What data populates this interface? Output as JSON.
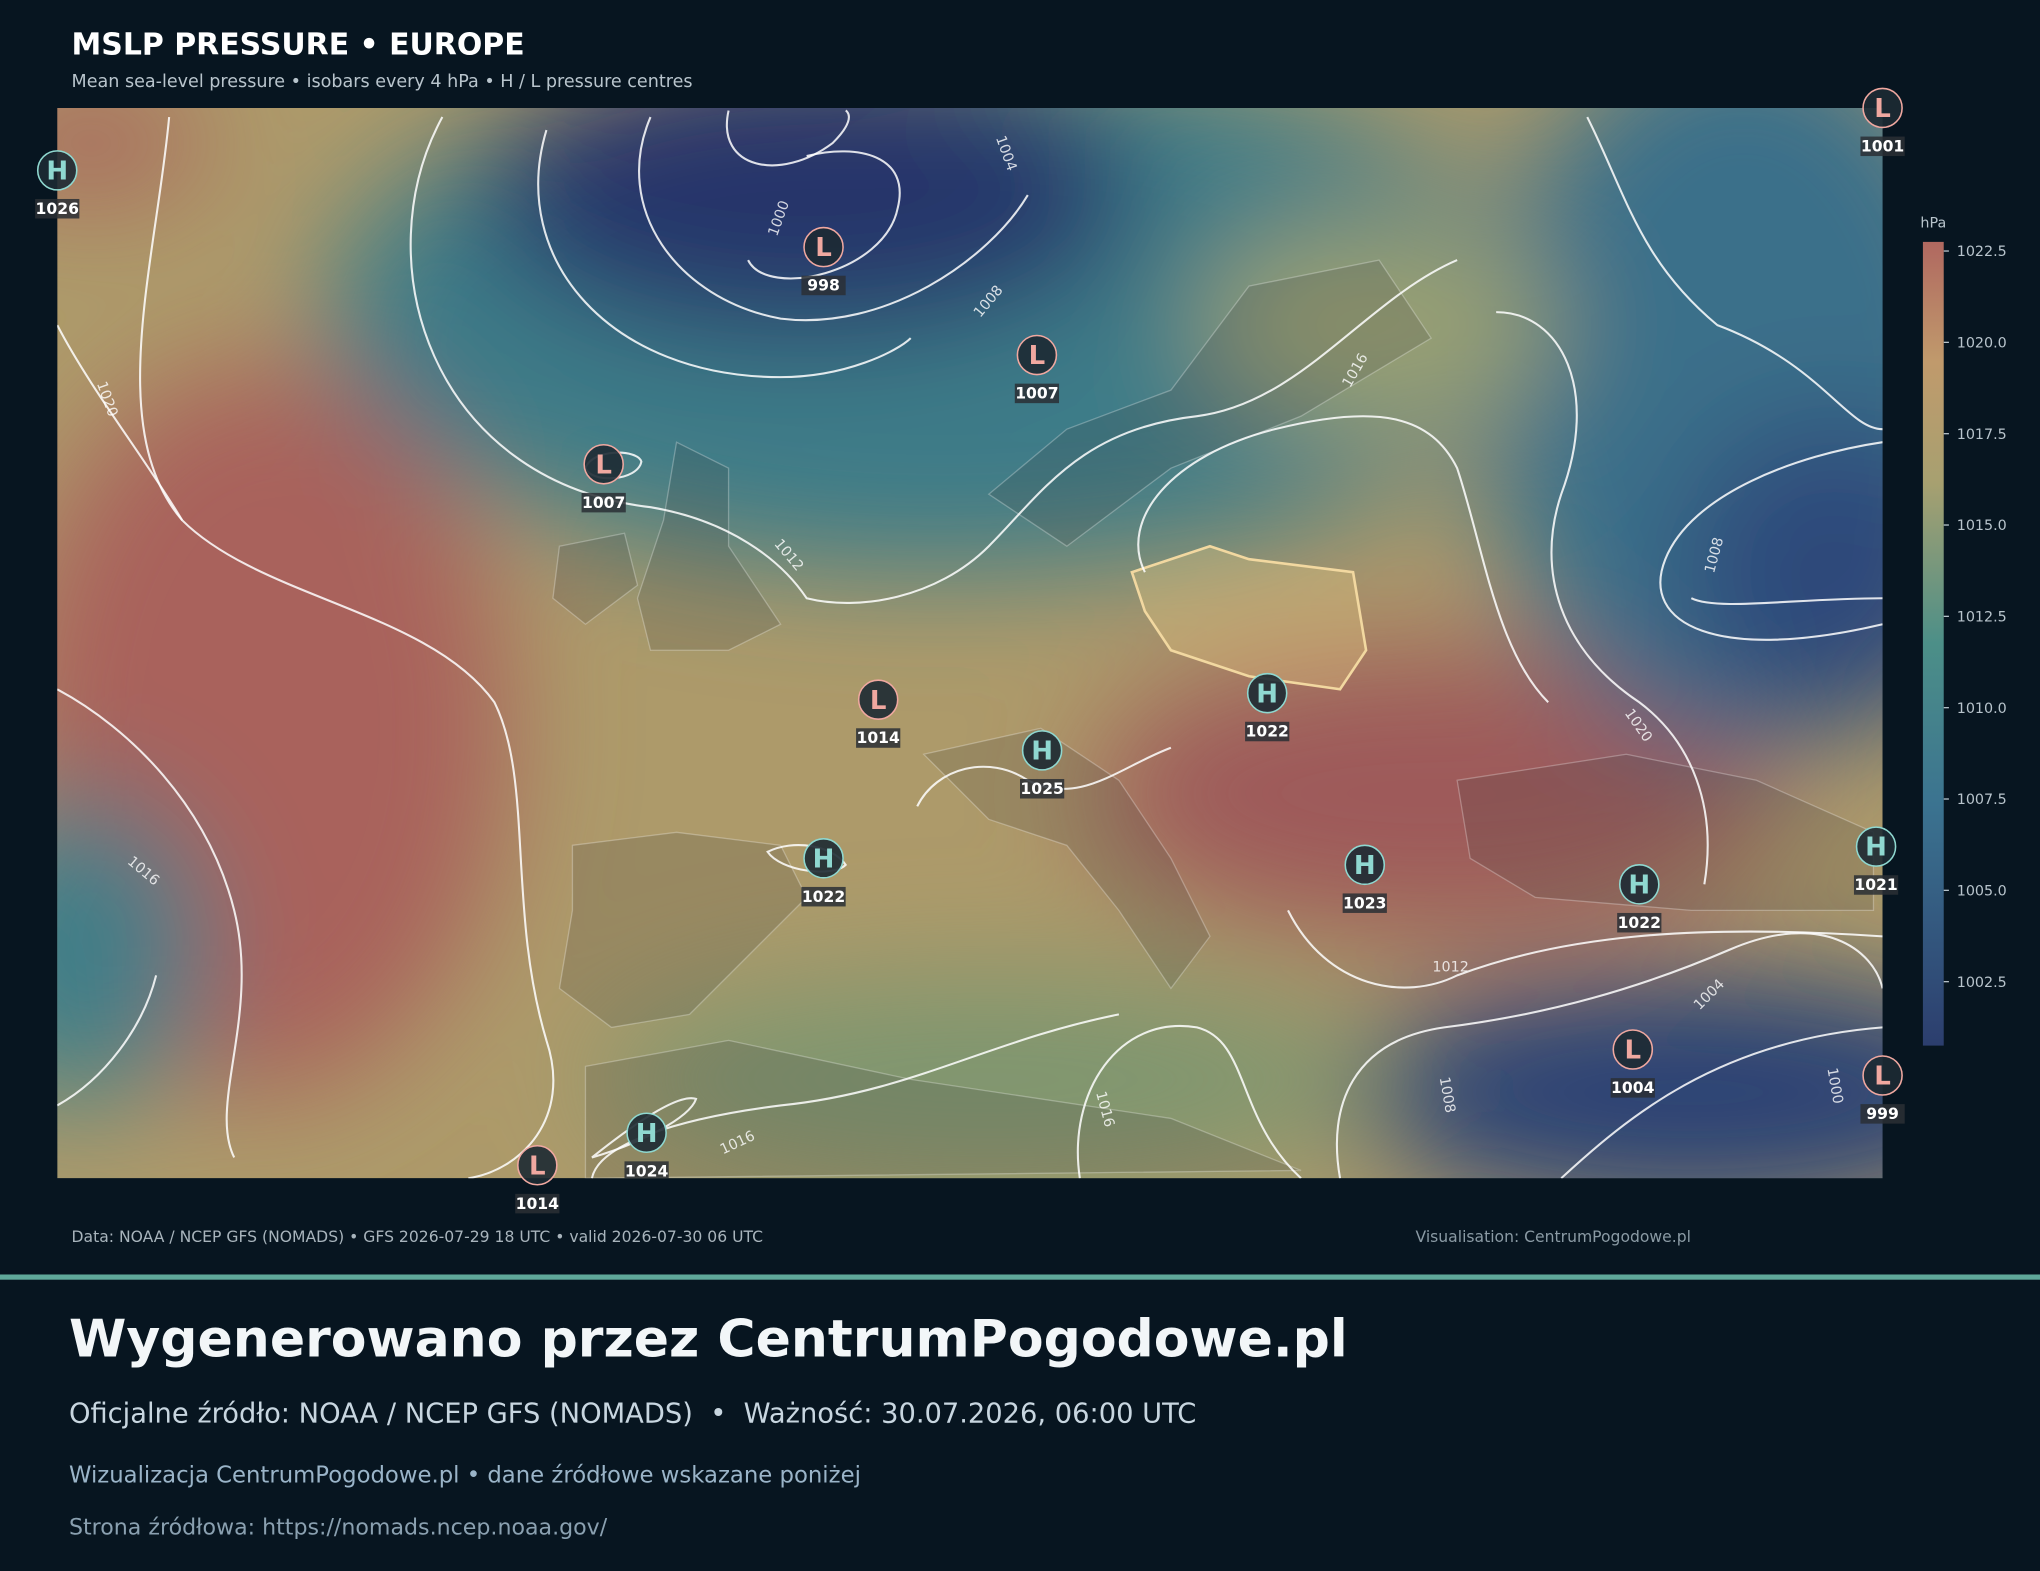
{
  "header": {
    "title": "MSLP PRESSURE • EUROPE",
    "subtitle": "Mean sea-level pressure • isobars every 4 hPa • H / L pressure centres"
  },
  "chart_data": {
    "type": "map",
    "centres": [
      {
        "type": "H",
        "value": 1026
      },
      {
        "type": "L",
        "value": 998
      },
      {
        "type": "L",
        "value": 1001
      },
      {
        "type": "L",
        "value": 1007
      },
      {
        "type": "L",
        "value": 1007
      },
      {
        "type": "L",
        "value": 1014
      },
      {
        "type": "H",
        "value": 1025
      },
      {
        "type": "H",
        "value": 1022
      },
      {
        "type": "H",
        "value": 1022
      },
      {
        "type": "H",
        "value": 1023
      },
      {
        "type": "H",
        "value": 1022
      },
      {
        "type": "H",
        "value": 1021
      },
      {
        "type": "L",
        "value": 1004
      },
      {
        "type": "L",
        "value": 999
      },
      {
        "type": "H",
        "value": 1024
      },
      {
        "type": "L",
        "value": 1014
      }
    ],
    "isobar_labels": [
      1004,
      1000,
      1008,
      1016,
      1020,
      1012,
      1008,
      1020,
      1016,
      1012,
      1004,
      1008,
      1016,
      1000,
      1016
    ],
    "colorbar": {
      "label": "hPa",
      "ylim": [
        1000.75,
        1022.75
      ],
      "yticks": [
        1022.5,
        {
          "value": 1020,
          "label": "1020.0"
        },
        1017.5,
        {
          "value": 1015,
          "label": "1015.0"
        },
        1012.5,
        {
          "value": 1010,
          "label": "1010.0"
        },
        1007.5,
        {
          "value": 1005,
          "label": "1005.0"
        },
        1002.5
      ]
    }
  },
  "footer": {
    "source": "Data: NOAA / NCEP GFS (NOMADS) • GFS 2026-07-29 18 UTC • valid 2026-07-30 06 UTC",
    "credit": "Visualisation: CentrumPogodowe.pl"
  },
  "banner": {
    "heading": "Wygenerowano przez CentrumPogodowe.pl",
    "official": "Oficjalne źródło: NOAA / NCEP GFS (NOMADS)  •  Ważność: 30.07.2026, 06:00 UTC",
    "visualisation": "Wizualizacja CentrumPogodowe.pl • dane źródłowe wskazane poniżej",
    "source_page": "Strona źródłowa: https://nomads.ncep.noaa.gov/"
  }
}
